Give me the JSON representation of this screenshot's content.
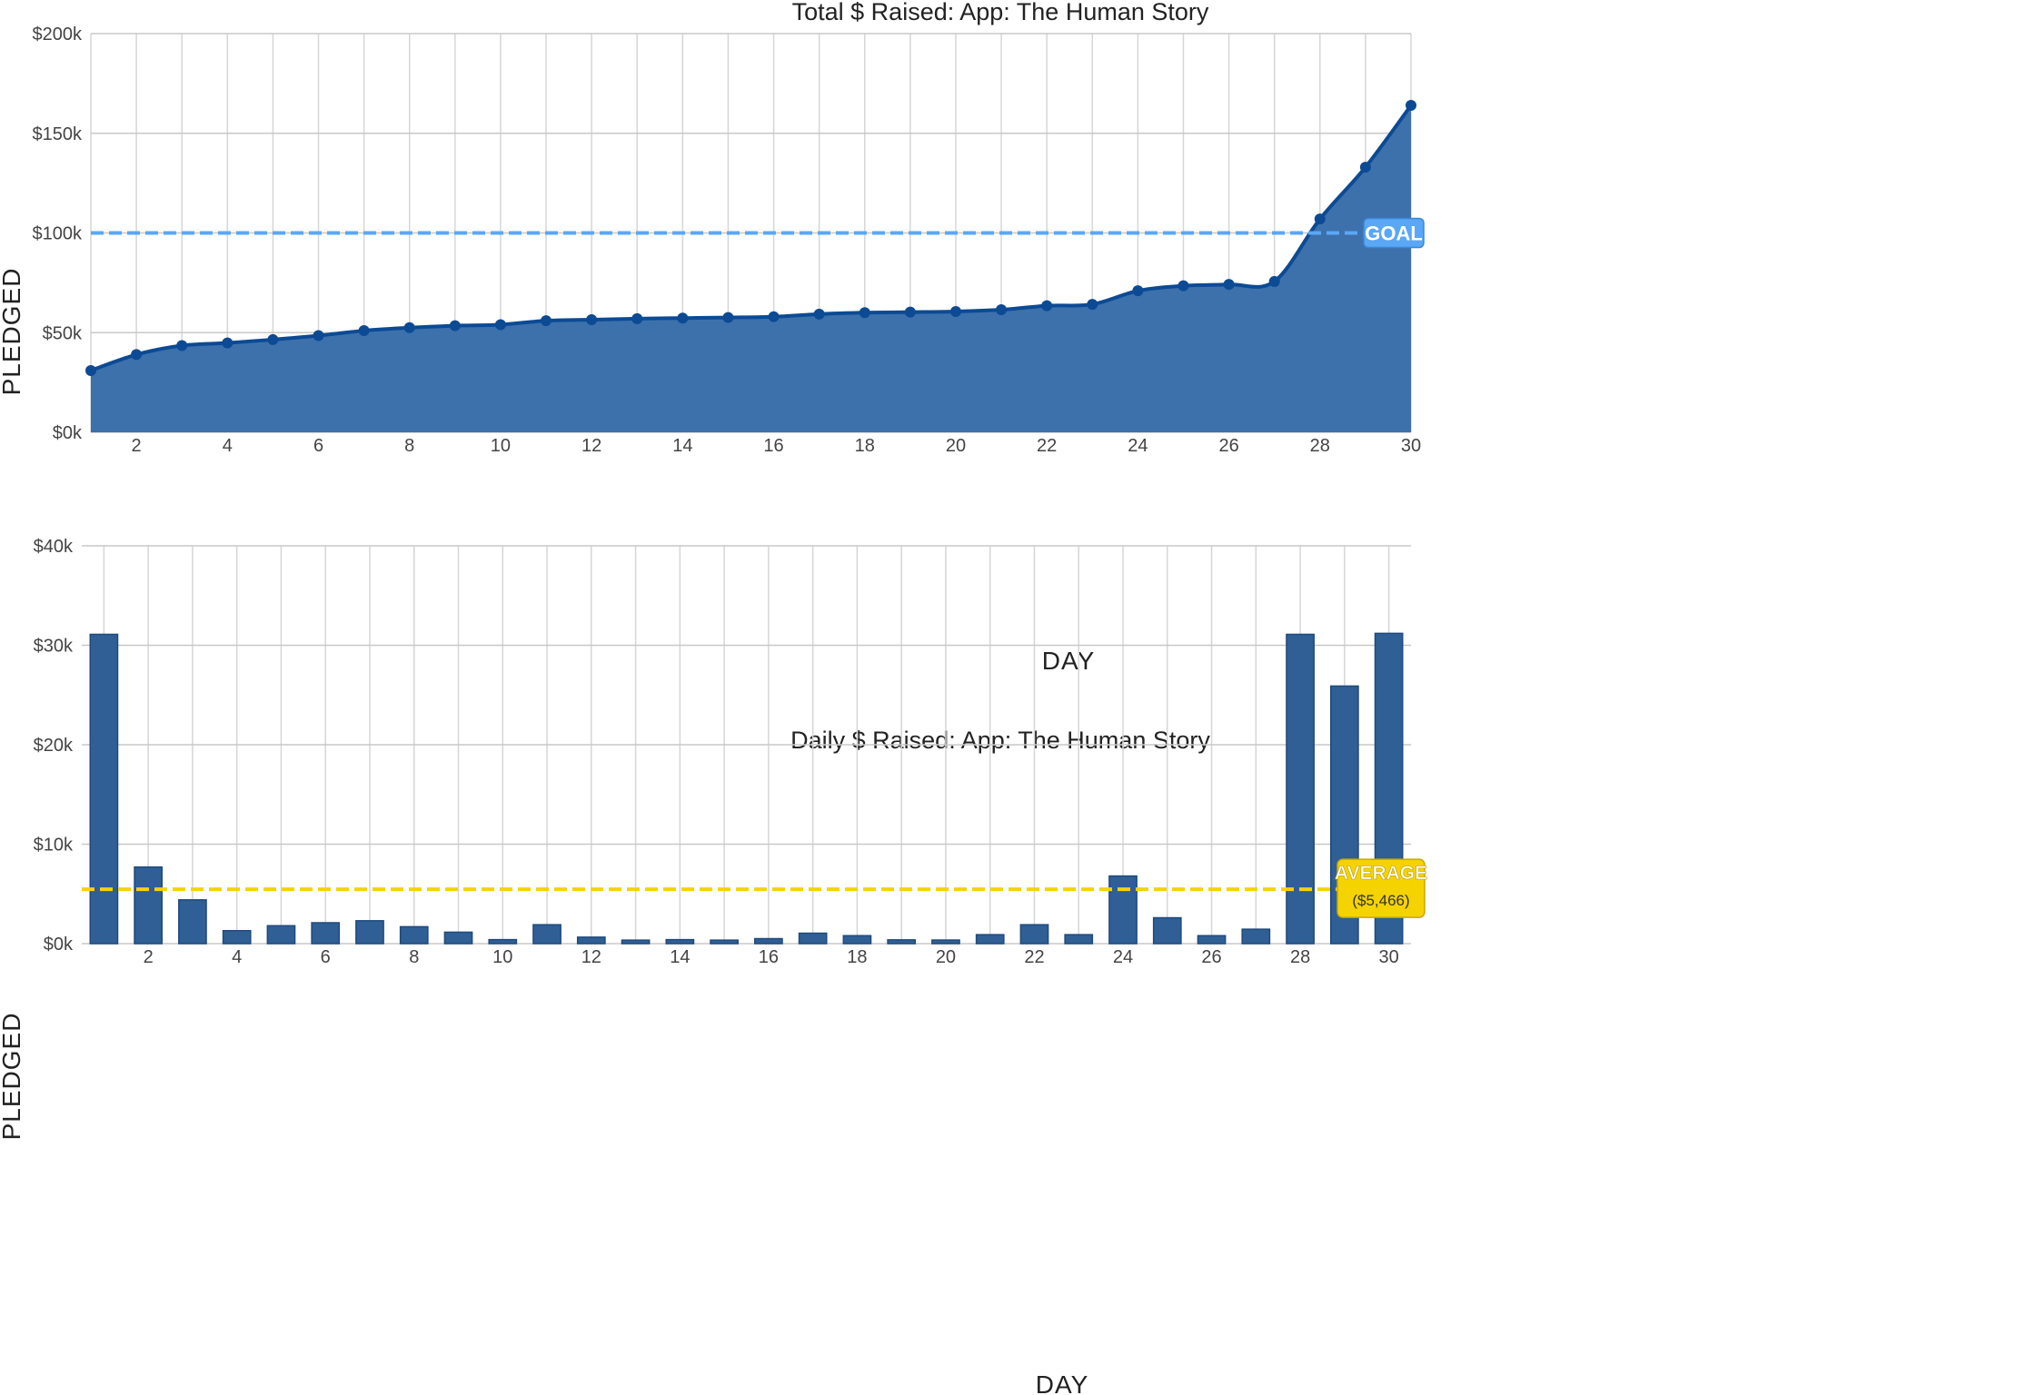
{
  "colors": {
    "series": "#2f5f95",
    "series_line": "#0c4a94",
    "area_fill": "#3d71ac",
    "goal_line": "#5aa7f5",
    "goal_badge": "#5aa7f5",
    "average_line": "#f5d300",
    "average_badge": "#f5d300"
  },
  "chart_data": [
    {
      "type": "area",
      "title": "Total $ Raised: App: The Human Story",
      "xlabel": "DAY",
      "ylabel": "PLEDGED",
      "xlim": [
        1,
        30
      ],
      "ylim": [
        0,
        200000
      ],
      "x_ticks": [
        2,
        4,
        6,
        8,
        10,
        12,
        14,
        16,
        18,
        20,
        22,
        24,
        26,
        28,
        30
      ],
      "y_ticks": [
        0,
        50000,
        100000,
        150000,
        200000
      ],
      "y_tick_labels": [
        "$0k",
        "$50k",
        "$100k",
        "$150k",
        "$200k"
      ],
      "grid": true,
      "x": [
        1,
        2,
        3,
        4,
        5,
        6,
        7,
        8,
        9,
        10,
        11,
        12,
        13,
        14,
        15,
        16,
        17,
        18,
        19,
        20,
        21,
        22,
        23,
        24,
        25,
        26,
        27,
        28,
        29,
        30
      ],
      "values": [
        31000,
        39000,
        43500,
        44800,
        46500,
        48500,
        51000,
        52500,
        53500,
        54000,
        56000,
        56500,
        57000,
        57300,
        57600,
        58000,
        59300,
        60000,
        60300,
        60600,
        61500,
        63500,
        64200,
        71000,
        73500,
        74200,
        75700,
        107000,
        133000,
        164000
      ],
      "goal": {
        "label": "GOAL",
        "value": 100000
      }
    },
    {
      "type": "bar",
      "title": "Daily $ Raised: App: The Human Story",
      "xlabel": "DAY",
      "ylabel": "PLEDGED",
      "xlim": [
        1,
        30
      ],
      "ylim": [
        0,
        40000
      ],
      "x_ticks": [
        2,
        4,
        6,
        8,
        10,
        12,
        14,
        16,
        18,
        20,
        22,
        24,
        26,
        28,
        30
      ],
      "y_ticks": [
        0,
        10000,
        20000,
        30000,
        40000
      ],
      "y_tick_labels": [
        "$0k",
        "$10k",
        "$20k",
        "$30k",
        "$40k"
      ],
      "grid": true,
      "x": [
        1,
        2,
        3,
        4,
        5,
        6,
        7,
        8,
        9,
        10,
        11,
        12,
        13,
        14,
        15,
        16,
        17,
        18,
        19,
        20,
        21,
        22,
        23,
        24,
        25,
        26,
        27,
        28,
        29,
        30
      ],
      "values": [
        31100,
        7700,
        4400,
        1300,
        1800,
        2100,
        2300,
        1700,
        1150,
        400,
        1900,
        650,
        350,
        400,
        350,
        500,
        1050,
        800,
        380,
        360,
        900,
        1900,
        900,
        6800,
        2600,
        800,
        1450,
        31100,
        25900,
        31200
      ],
      "average": {
        "label": "AVERAGE",
        "value_label": "($5,466)",
        "value": 5466
      }
    }
  ]
}
